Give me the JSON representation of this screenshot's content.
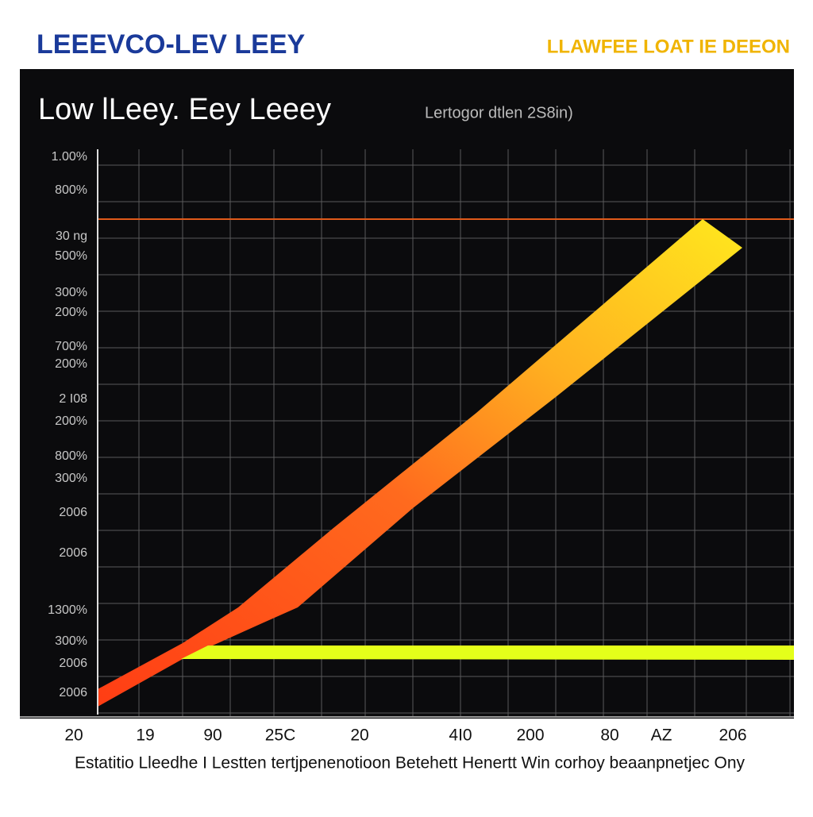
{
  "header": {
    "title": "LEEEVCO-LEV  LEEY",
    "badge": "LLAWFEE LOAT IE DEEON"
  },
  "panel": {
    "title": "Low lLeey. Eey   Leeey",
    "subtitle": "Lertogor dtlen 2S8in)",
    "y_labels": [
      "1.00%",
      "800%",
      "30 ng",
      "500%",
      "300%",
      "200%",
      "700%",
      "200%",
      "2 I08",
      "200%",
      "800%",
      "300%",
      "2006",
      "2006",
      "1300%",
      "300%",
      "2006",
      "2006"
    ],
    "x_labels": [
      "20",
      "19",
      "90",
      "25C",
      "20",
      "4I0",
      "200",
      "80",
      "AZ",
      "206"
    ]
  },
  "footer": {
    "caption": "Estatitio Lleedhe I Lestten tertjpenenotioon Betehett Henertt Win corhoy beaanpnetjec Ony"
  }
}
